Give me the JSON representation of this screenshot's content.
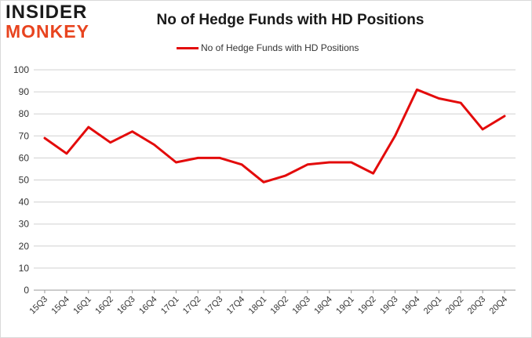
{
  "logo": {
    "line1": "INSIDER",
    "line2": "MONKEY"
  },
  "chart_data": {
    "type": "line",
    "title": "No of Hedge Funds with HD Positions",
    "xlabel": "",
    "ylabel": "",
    "categories": [
      "15Q3",
      "15Q4",
      "16Q1",
      "16Q2",
      "16Q3",
      "16Q4",
      "17Q1",
      "17Q2",
      "17Q3",
      "17Q4",
      "18Q1",
      "18Q2",
      "18Q3",
      "18Q4",
      "19Q1",
      "19Q2",
      "19Q3",
      "19Q4",
      "20Q1",
      "20Q2",
      "20Q3",
      "20Q4"
    ],
    "series": [
      {
        "name": "No of Hedge Funds with HD Positions",
        "values": [
          69,
          62,
          74,
          67,
          72,
          66,
          58,
          60,
          60,
          57,
          49,
          52,
          57,
          58,
          58,
          53,
          70,
          91,
          87,
          85,
          73,
          79
        ]
      }
    ],
    "ylim": [
      0,
      100
    ],
    "yticks": [
      0,
      10,
      20,
      30,
      40,
      50,
      60,
      70,
      80,
      90,
      100
    ],
    "grid": true,
    "legend_position": "top-center",
    "colors": {
      "line": "#e30b0b",
      "grid": "#d0d0d0"
    }
  }
}
